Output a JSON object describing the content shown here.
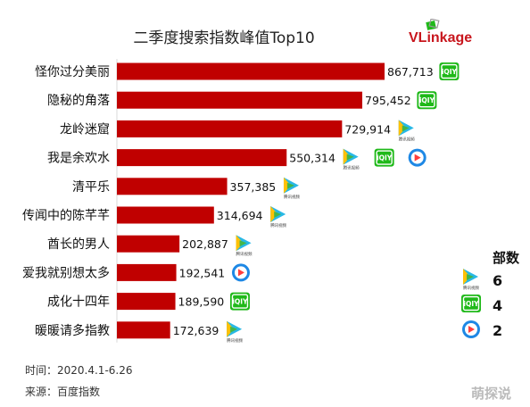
{
  "chart_data": {
    "type": "bar",
    "orientation": "horizontal",
    "title": "二季度搜索指数峰值Top10",
    "categories": [
      "怪你过分美丽",
      "隐秘的角落",
      "龙岭迷窟",
      "我是余欢水",
      "清平乐",
      "传闻中的陈芊芊",
      "酋长的男人",
      "爱我就别想太多",
      "成化十四年",
      "暖暖请多指教"
    ],
    "values": [
      867713,
      795452,
      729914,
      550314,
      357385,
      314694,
      202887,
      192541,
      189590,
      172639
    ],
    "value_labels": [
      "867,713",
      "795,452",
      "729,914",
      "550,314",
      "357,385",
      "314,694",
      "202,887",
      "192,541",
      "189,590",
      "172,639"
    ],
    "platforms": [
      [
        "iqiyi"
      ],
      [
        "iqiyi"
      ],
      [
        "tencent"
      ],
      [
        "tencent",
        "iqiyi",
        "youku"
      ],
      [
        "tencent"
      ],
      [
        "tencent"
      ],
      [
        "tencent"
      ],
      [
        "youku"
      ],
      [
        "iqiyi"
      ],
      [
        "tencent"
      ]
    ],
    "xlim": [
      0,
      900000
    ],
    "bar_color": "#c00000",
    "grid": false,
    "legend_position": "right",
    "legend": {
      "title": "部数",
      "items": [
        {
          "platform": "tencent",
          "count": "6"
        },
        {
          "platform": "iqiyi",
          "count": "4"
        },
        {
          "platform": "youku",
          "count": "2"
        }
      ]
    }
  },
  "brand": "VLinkage",
  "footer": {
    "time": "时间：2020.4.1-6.26",
    "source": "来源：百度指数"
  },
  "watermark": "萌探说",
  "icon_text": {
    "iqiyi": "iQIY",
    "tencent": "腾讯视频"
  },
  "colors": {
    "iqiyi": "#1fb919",
    "youku": "#1e88e5",
    "youku_play": "#ff3d3d",
    "tencent_a": "#28b8e6",
    "tencent_b": "#ffc107",
    "tencent_c": "#43b649"
  }
}
